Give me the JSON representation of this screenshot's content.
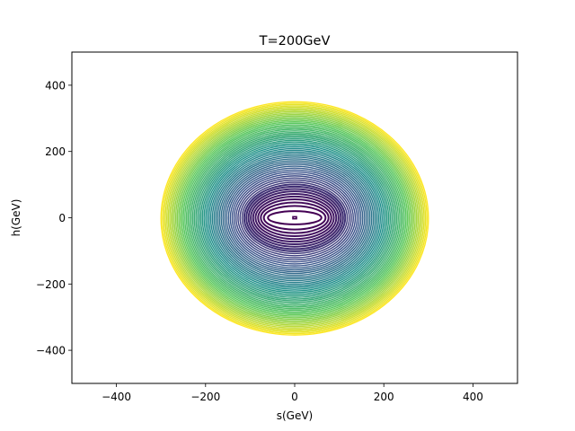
{
  "chart_data": {
    "type": "contour",
    "title": "T=200GeV",
    "xlabel": "s(GeV)",
    "ylabel": "h(GeV)",
    "xlim": [
      -500,
      500
    ],
    "ylim": [
      -500,
      500
    ],
    "xticks": [
      -400,
      -200,
      0,
      200,
      400
    ],
    "yticks": [
      -400,
      -200,
      0,
      200,
      400
    ],
    "xtick_labels": [
      "−400",
      "−200",
      "0",
      "200",
      "400"
    ],
    "ytick_labels": [
      "−400",
      "−200",
      "0",
      "200",
      "400"
    ],
    "grid": false,
    "colormap": "viridis",
    "colormap_stops": [
      "#440154",
      "#3b528b",
      "#21918c",
      "#5ec962",
      "#fde725"
    ],
    "center": [
      0,
      0
    ],
    "innermost_marker": {
      "half_width_s": 4,
      "half_height_h": 3
    },
    "contours": {
      "count": 60,
      "s_semi_axis_range": [
        60,
        300
      ],
      "h_semi_axis_range": [
        20,
        352
      ],
      "h_offset_range": [
        0,
        -2
      ]
    }
  }
}
